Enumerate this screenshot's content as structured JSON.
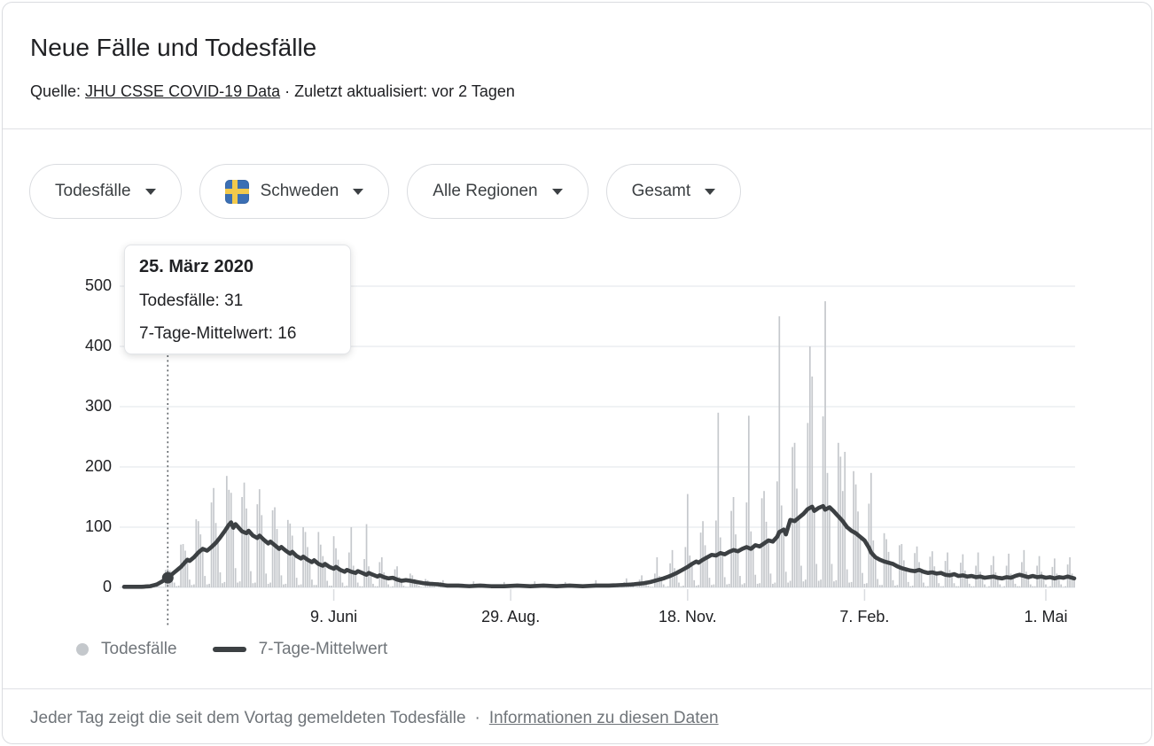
{
  "header": {
    "title": "Neue Fälle und Todesfälle",
    "source_prefix": "Quelle: ",
    "source_link": "JHU CSSE COVID-19 Data",
    "source_suffix": " · Zuletzt aktualisiert: vor 2 Tagen"
  },
  "filters": [
    {
      "label": "Todesfälle"
    },
    {
      "label": "Schweden",
      "flag": "sweden-flag"
    },
    {
      "label": "Alle Regionen"
    },
    {
      "label": "Gesamt"
    }
  ],
  "tooltip": {
    "title": "25. März 2020",
    "row1": "Todesfälle: 31",
    "row2": "7-Tage-Mittelwert: 16"
  },
  "legend": [
    {
      "label": "Todesfälle",
      "swatch": "dot",
      "color": "#c4c8cc"
    },
    {
      "label": "7-Tage-Mittelwert",
      "swatch": "line",
      "color": "#3c4043"
    }
  ],
  "footer": {
    "text": "Jeder Tag zeigt die seit dem Vortag gemeldeten Todesfälle",
    "separator": "·",
    "link": "Informationen zu diesen Daten"
  },
  "colors": {
    "bar": "#c5c8cc",
    "avg_line": "#3c4043",
    "grid": "#e8eaed",
    "tick": "#dadce0",
    "dotted_guide": "#5f6368",
    "axis_text": "#202124",
    "muted_text": "#70757a",
    "chip_border": "#dadce0"
  },
  "chart_data": {
    "type": "bar",
    "title": "Todesfälle pro Tag mit 7-Tage-Mittelwert, Schweden",
    "x_start_date": "2020-03-05",
    "x_end_date": "2021-05-14",
    "days_total": 435,
    "ylim": [
      0,
      520
    ],
    "y_ticks": [
      0,
      100,
      200,
      300,
      400,
      500
    ],
    "x_ticks": [
      {
        "day": 96,
        "label": "9. Juni"
      },
      {
        "day": 177,
        "label": "29. Aug."
      },
      {
        "day": 258,
        "label": "18. Nov."
      },
      {
        "day": 339,
        "label": "7. Feb."
      },
      {
        "day": 422,
        "label": "1. Mai"
      }
    ],
    "grid": true,
    "legend_position": "bottom-left",
    "highlight": {
      "day": 20,
      "date": "25. März 2020",
      "bar_value": 31,
      "avg_value": 16
    },
    "series": [
      {
        "name": "Todesfälle",
        "type": "bar",
        "color": "#c5c8cc",
        "weekly_pattern": [
          1.45,
          1.0,
          0.3,
          0.08,
          0.1,
          2.1,
          1.9
        ],
        "overrides": {
          "20": 31,
          "41": 165,
          "47": 185,
          "48": 162,
          "54": 150,
          "61": 138,
          "68": 128,
          "75": 112,
          "82": 100,
          "89": 92,
          "96": 85,
          "104": 100,
          "111": 105,
          "118": 50,
          "125": 35,
          "146": 12,
          "160": 10,
          "174": 9,
          "188": 10,
          "202": 9,
          "216": 12,
          "230": 15,
          "237": 20,
          "244": 50,
          "251": 62,
          "258": 155,
          "265": 110,
          "272": 290,
          "279": 150,
          "286": 285,
          "293": 160,
          "300": 450,
          "307": 240,
          "314": 400,
          "315": 350,
          "321": 475,
          "327": 240,
          "330": 225,
          "342": 190,
          "349": 80,
          "356": 72,
          "363": 68,
          "370": 60,
          "377": 58,
          "384": 55,
          "391": 58,
          "398": 52,
          "405": 56,
          "412": 62,
          "419": 52,
          "426": 48,
          "433": 50
        }
      },
      {
        "name": "7-Tage-Mittelwert",
        "type": "line",
        "color": "#3c4043",
        "points": [
          [
            0,
            1
          ],
          [
            8,
            1
          ],
          [
            12,
            2
          ],
          [
            15,
            5
          ],
          [
            17,
            9
          ],
          [
            20,
            16
          ],
          [
            22,
            22
          ],
          [
            24,
            28
          ],
          [
            26,
            34
          ],
          [
            28,
            42
          ],
          [
            29,
            46
          ],
          [
            30,
            44
          ],
          [
            32,
            50
          ],
          [
            34,
            58
          ],
          [
            36,
            64
          ],
          [
            38,
            61
          ],
          [
            40,
            67
          ],
          [
            42,
            74
          ],
          [
            44,
            83
          ],
          [
            46,
            93
          ],
          [
            48,
            104
          ],
          [
            49,
            108
          ],
          [
            50,
            99
          ],
          [
            51,
            105
          ],
          [
            53,
            97
          ],
          [
            54,
            93
          ],
          [
            56,
            90
          ],
          [
            57,
            94
          ],
          [
            59,
            86
          ],
          [
            61,
            82
          ],
          [
            62,
            86
          ],
          [
            64,
            79
          ],
          [
            66,
            73
          ],
          [
            67,
            76
          ],
          [
            69,
            70
          ],
          [
            71,
            64
          ],
          [
            72,
            67
          ],
          [
            74,
            61
          ],
          [
            76,
            56
          ],
          [
            77,
            59
          ],
          [
            79,
            52
          ],
          [
            81,
            48
          ],
          [
            82,
            51
          ],
          [
            84,
            46
          ],
          [
            86,
            42
          ],
          [
            87,
            45
          ],
          [
            89,
            39
          ],
          [
            91,
            36
          ],
          [
            92,
            39
          ],
          [
            94,
            34
          ],
          [
            96,
            31
          ],
          [
            97,
            34
          ],
          [
            99,
            29
          ],
          [
            101,
            26
          ],
          [
            102,
            29
          ],
          [
            104,
            26
          ],
          [
            106,
            24
          ],
          [
            107,
            27
          ],
          [
            109,
            24
          ],
          [
            111,
            21
          ],
          [
            112,
            24
          ],
          [
            114,
            21
          ],
          [
            116,
            18
          ],
          [
            117,
            20
          ],
          [
            119,
            17
          ],
          [
            121,
            15
          ],
          [
            123,
            16
          ],
          [
            125,
            13
          ],
          [
            127,
            11
          ],
          [
            129,
            12
          ],
          [
            131,
            11
          ],
          [
            134,
            9
          ],
          [
            137,
            7
          ],
          [
            140,
            6
          ],
          [
            144,
            5
          ],
          [
            148,
            3
          ],
          [
            153,
            3
          ],
          [
            158,
            2
          ],
          [
            163,
            3
          ],
          [
            168,
            2
          ],
          [
            174,
            2
          ],
          [
            180,
            3
          ],
          [
            186,
            2
          ],
          [
            192,
            3
          ],
          [
            198,
            2
          ],
          [
            204,
            3
          ],
          [
            210,
            2
          ],
          [
            216,
            3
          ],
          [
            222,
            3
          ],
          [
            228,
            4
          ],
          [
            233,
            5
          ],
          [
            238,
            7
          ],
          [
            241,
            9
          ],
          [
            244,
            12
          ],
          [
            247,
            15
          ],
          [
            250,
            19
          ],
          [
            253,
            24
          ],
          [
            256,
            30
          ],
          [
            258,
            34
          ],
          [
            260,
            39
          ],
          [
            262,
            43
          ],
          [
            263,
            41
          ],
          [
            265,
            46
          ],
          [
            267,
            50
          ],
          [
            269,
            54
          ],
          [
            271,
            53
          ],
          [
            273,
            57
          ],
          [
            275,
            55
          ],
          [
            277,
            59
          ],
          [
            279,
            62
          ],
          [
            281,
            60
          ],
          [
            283,
            64
          ],
          [
            285,
            67
          ],
          [
            287,
            64
          ],
          [
            289,
            70
          ],
          [
            291,
            68
          ],
          [
            293,
            73
          ],
          [
            295,
            78
          ],
          [
            297,
            76
          ],
          [
            299,
            84
          ],
          [
            300,
            92
          ],
          [
            302,
            96
          ],
          [
            303,
            88
          ],
          [
            304,
            100
          ],
          [
            305,
            112
          ],
          [
            307,
            110
          ],
          [
            309,
            116
          ],
          [
            311,
            122
          ],
          [
            313,
            130
          ],
          [
            315,
            134
          ],
          [
            316,
            127
          ],
          [
            318,
            132
          ],
          [
            320,
            135
          ],
          [
            321,
            129
          ],
          [
            323,
            133
          ],
          [
            325,
            126
          ],
          [
            327,
            118
          ],
          [
            329,
            110
          ],
          [
            331,
            100
          ],
          [
            333,
            94
          ],
          [
            335,
            90
          ],
          [
            337,
            84
          ],
          [
            339,
            78
          ],
          [
            341,
            66
          ],
          [
            342,
            58
          ],
          [
            344,
            50
          ],
          [
            346,
            46
          ],
          [
            348,
            43
          ],
          [
            350,
            41
          ],
          [
            352,
            39
          ],
          [
            354,
            35
          ],
          [
            356,
            32
          ],
          [
            358,
            30
          ],
          [
            360,
            28
          ],
          [
            362,
            27
          ],
          [
            364,
            29
          ],
          [
            366,
            26
          ],
          [
            368,
            24
          ],
          [
            370,
            25
          ],
          [
            372,
            23
          ],
          [
            374,
            24
          ],
          [
            376,
            21
          ],
          [
            378,
            20
          ],
          [
            380,
            22
          ],
          [
            382,
            19
          ],
          [
            384,
            20
          ],
          [
            386,
            18
          ],
          [
            388,
            19
          ],
          [
            390,
            17
          ],
          [
            392,
            18
          ],
          [
            394,
            16
          ],
          [
            396,
            17
          ],
          [
            398,
            18
          ],
          [
            400,
            16
          ],
          [
            402,
            15
          ],
          [
            404,
            17
          ],
          [
            406,
            16
          ],
          [
            408,
            19
          ],
          [
            410,
            21
          ],
          [
            412,
            19
          ],
          [
            414,
            17
          ],
          [
            416,
            19
          ],
          [
            418,
            17
          ],
          [
            420,
            18
          ],
          [
            422,
            16
          ],
          [
            424,
            17
          ],
          [
            426,
            15
          ],
          [
            428,
            17
          ],
          [
            430,
            16
          ],
          [
            432,
            18
          ],
          [
            434,
            16
          ],
          [
            435,
            15
          ]
        ]
      }
    ]
  }
}
